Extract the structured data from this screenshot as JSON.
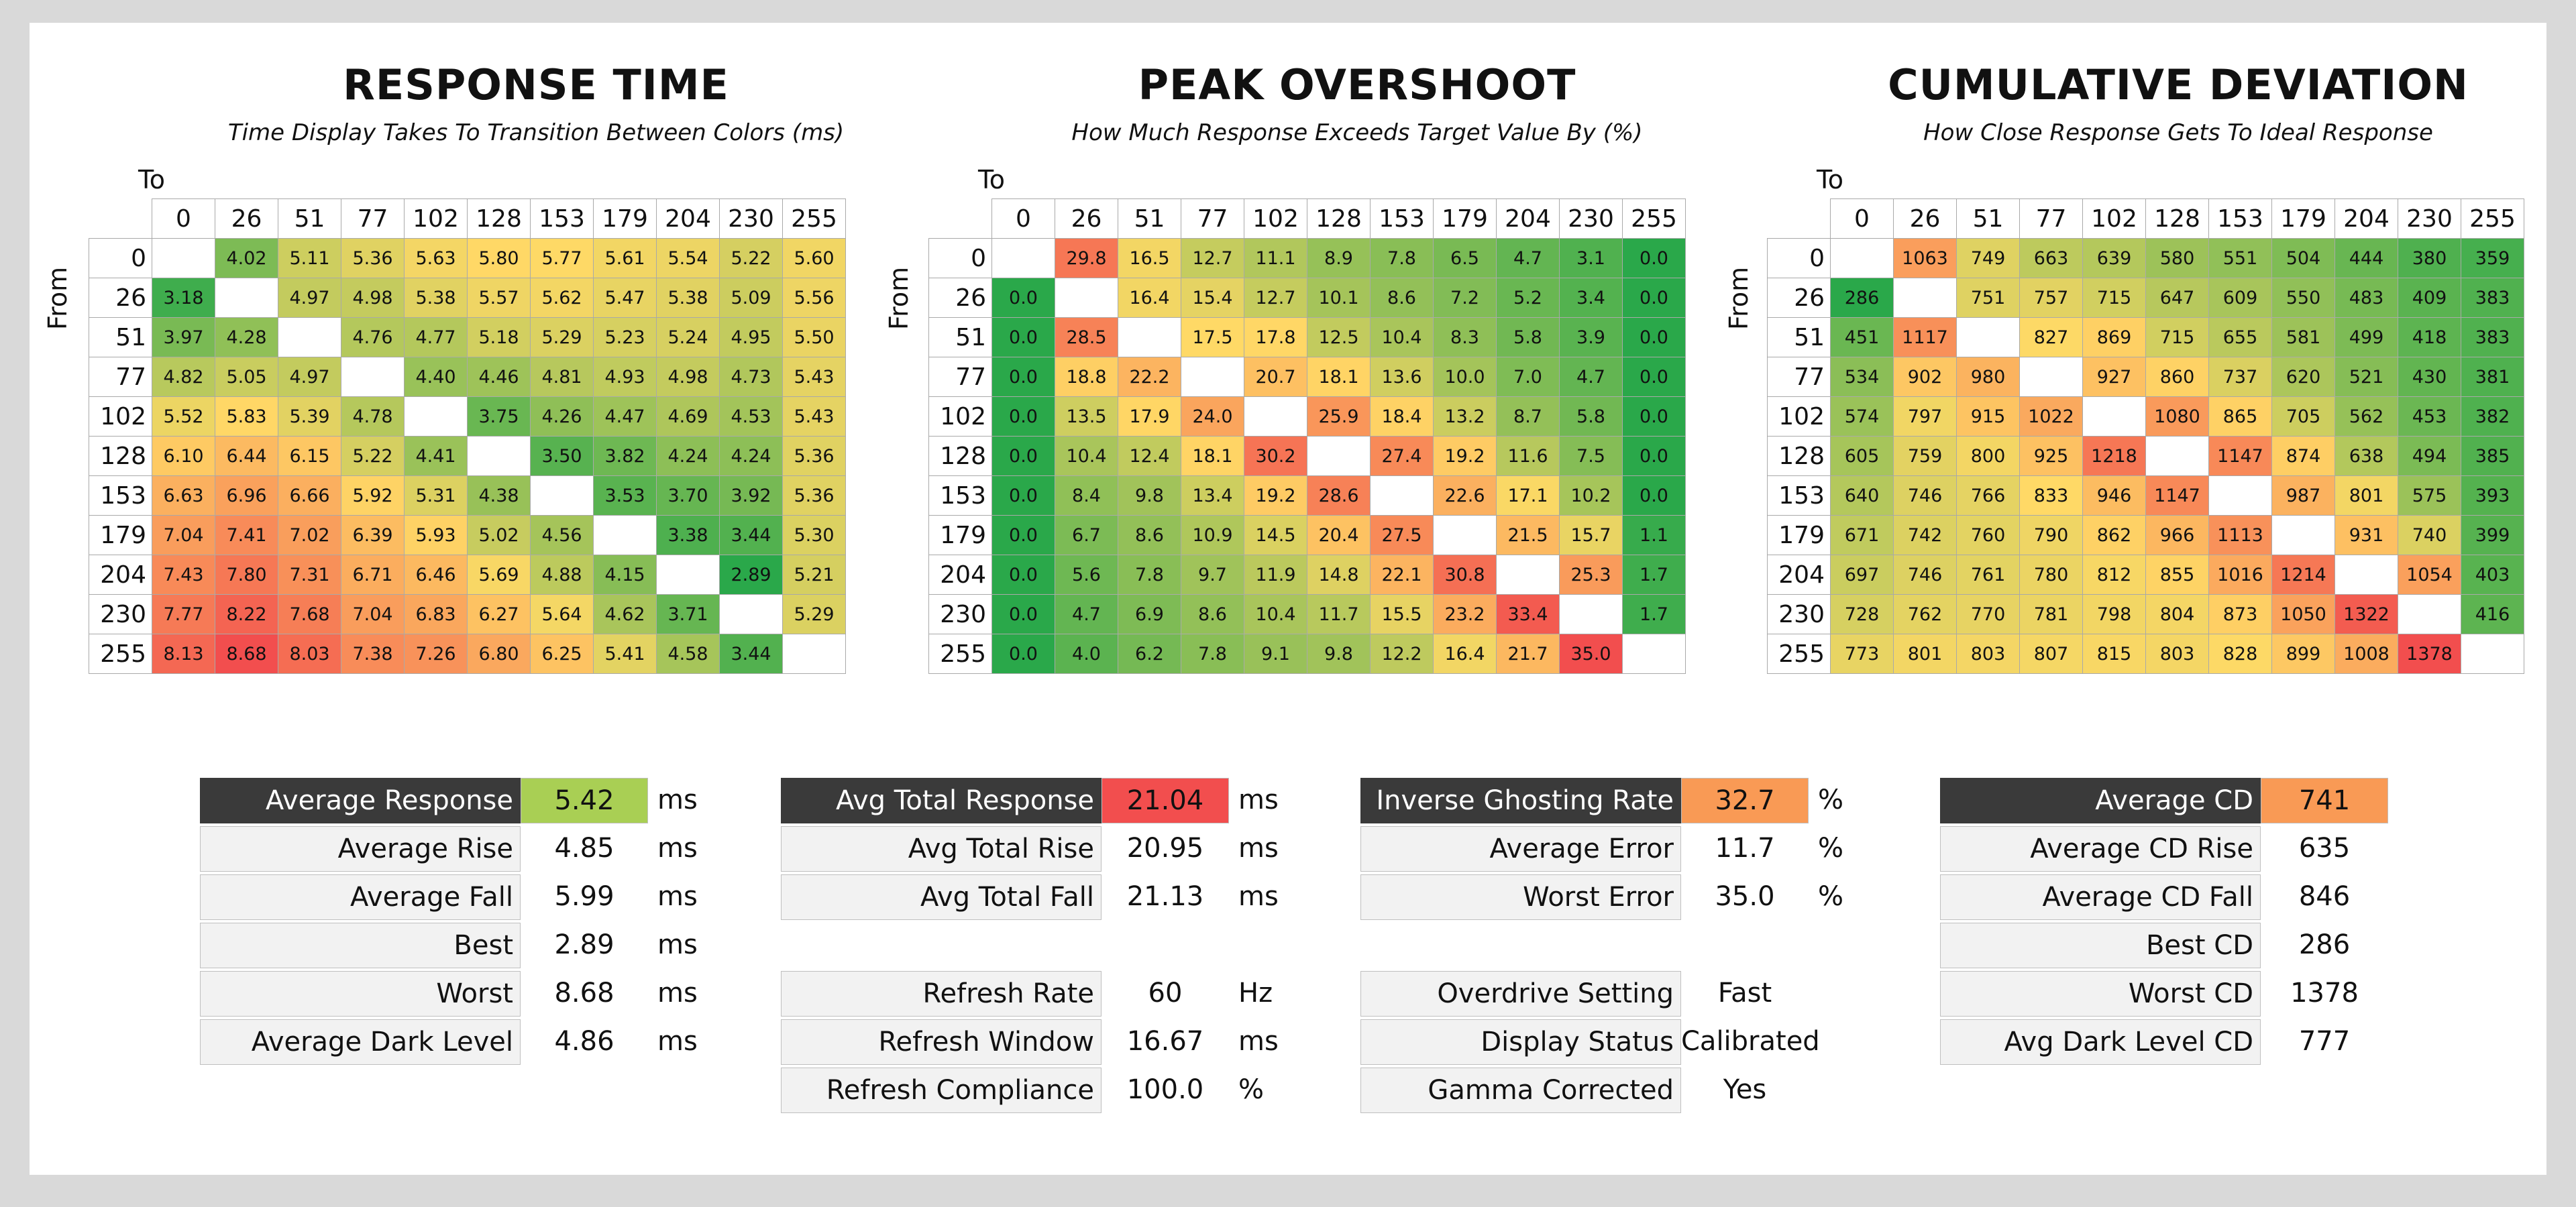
{
  "colors": {
    "good": "#2aa84a",
    "mid": "#ffd966",
    "bad": "#f24e4e",
    "dark_label": "#3a3a3a"
  },
  "levels": [
    "0",
    "26",
    "51",
    "77",
    "102",
    "128",
    "153",
    "179",
    "204",
    "230",
    "255"
  ],
  "axis": {
    "to": "To",
    "from": "From"
  },
  "chart_data": [
    {
      "type": "heatmap",
      "title": "RESPONSE TIME",
      "subtitle": "Time Display Takes To Transition Between Colors (ms)",
      "x_label": "To",
      "y_label": "From",
      "categories": [
        "0",
        "26",
        "51",
        "77",
        "102",
        "128",
        "153",
        "179",
        "204",
        "230",
        "255"
      ],
      "color_range": [
        2.89,
        8.68
      ],
      "decimals": 2,
      "values": [
        [
          null,
          4.02,
          5.11,
          5.36,
          5.63,
          5.8,
          5.77,
          5.61,
          5.54,
          5.22,
          5.6
        ],
        [
          3.18,
          null,
          4.97,
          4.98,
          5.38,
          5.57,
          5.62,
          5.47,
          5.38,
          5.09,
          5.56
        ],
        [
          3.97,
          4.28,
          null,
          4.76,
          4.77,
          5.18,
          5.29,
          5.23,
          5.24,
          4.95,
          5.5
        ],
        [
          4.82,
          5.05,
          4.97,
          null,
          4.4,
          4.46,
          4.81,
          4.93,
          4.98,
          4.73,
          5.43
        ],
        [
          5.52,
          5.83,
          5.39,
          4.78,
          null,
          3.75,
          4.26,
          4.47,
          4.69,
          4.53,
          5.43
        ],
        [
          6.1,
          6.44,
          6.15,
          5.22,
          4.41,
          null,
          3.5,
          3.82,
          4.24,
          4.24,
          5.36
        ],
        [
          6.63,
          6.96,
          6.66,
          5.92,
          5.31,
          4.38,
          null,
          3.53,
          3.7,
          3.92,
          5.36
        ],
        [
          7.04,
          7.41,
          7.02,
          6.39,
          5.93,
          5.02,
          4.56,
          null,
          3.38,
          3.44,
          5.3
        ],
        [
          7.43,
          7.8,
          7.31,
          6.71,
          6.46,
          5.69,
          4.88,
          4.15,
          null,
          2.89,
          5.21
        ],
        [
          7.77,
          8.22,
          7.68,
          7.04,
          6.83,
          6.27,
          5.64,
          4.62,
          3.71,
          null,
          5.29
        ],
        [
          8.13,
          8.68,
          8.03,
          7.38,
          7.26,
          6.8,
          6.25,
          5.41,
          4.58,
          3.44,
          null
        ]
      ]
    },
    {
      "type": "heatmap",
      "title": "PEAK OVERSHOOT",
      "subtitle": "How Much Response Exceeds Target Value By (%)",
      "x_label": "To",
      "y_label": "From",
      "categories": [
        "0",
        "26",
        "51",
        "77",
        "102",
        "128",
        "153",
        "179",
        "204",
        "230",
        "255"
      ],
      "color_range": [
        0.0,
        35.0
      ],
      "decimals": 1,
      "values": [
        [
          null,
          29.8,
          16.5,
          12.7,
          11.1,
          8.9,
          7.8,
          6.5,
          4.7,
          3.1,
          0.0
        ],
        [
          0.0,
          null,
          16.4,
          15.4,
          12.7,
          10.1,
          8.6,
          7.2,
          5.2,
          3.4,
          0.0
        ],
        [
          0.0,
          28.5,
          null,
          17.5,
          17.8,
          12.5,
          10.4,
          8.3,
          5.8,
          3.9,
          0.0
        ],
        [
          0.0,
          18.8,
          22.2,
          null,
          20.7,
          18.1,
          13.6,
          10.0,
          7.0,
          4.7,
          0.0
        ],
        [
          0.0,
          13.5,
          17.9,
          24.0,
          null,
          25.9,
          18.4,
          13.2,
          8.7,
          5.8,
          0.0
        ],
        [
          0.0,
          10.4,
          12.4,
          18.1,
          30.2,
          null,
          27.4,
          19.2,
          11.6,
          7.5,
          0.0
        ],
        [
          0.0,
          8.4,
          9.8,
          13.4,
          19.2,
          28.6,
          null,
          22.6,
          17.1,
          10.2,
          0.0
        ],
        [
          0.0,
          6.7,
          8.6,
          10.9,
          14.5,
          20.4,
          27.5,
          null,
          21.5,
          15.7,
          1.1
        ],
        [
          0.0,
          5.6,
          7.8,
          9.7,
          11.9,
          14.8,
          22.1,
          30.8,
          null,
          25.3,
          1.7
        ],
        [
          0.0,
          4.7,
          6.9,
          8.6,
          10.4,
          11.7,
          15.5,
          23.2,
          33.4,
          null,
          1.7
        ],
        [
          0.0,
          4.0,
          6.2,
          7.8,
          9.1,
          9.8,
          12.2,
          16.4,
          21.7,
          35.0,
          null
        ]
      ]
    },
    {
      "type": "heatmap",
      "title": "CUMULATIVE DEVIATION",
      "subtitle": "How Close Response Gets To Ideal Response",
      "x_label": "To",
      "y_label": "From",
      "categories": [
        "0",
        "26",
        "51",
        "77",
        "102",
        "128",
        "153",
        "179",
        "204",
        "230",
        "255"
      ],
      "color_range": [
        286,
        1378
      ],
      "decimals": 0,
      "values": [
        [
          null,
          1063,
          749,
          663,
          639,
          580,
          551,
          504,
          444,
          380,
          359
        ],
        [
          286,
          null,
          751,
          757,
          715,
          647,
          609,
          550,
          483,
          409,
          383
        ],
        [
          451,
          1117,
          null,
          827,
          869,
          715,
          655,
          581,
          499,
          418,
          383
        ],
        [
          534,
          902,
          980,
          null,
          927,
          860,
          737,
          620,
          521,
          430,
          381
        ],
        [
          574,
          797,
          915,
          1022,
          null,
          1080,
          865,
          705,
          562,
          453,
          382
        ],
        [
          605,
          759,
          800,
          925,
          1218,
          null,
          1147,
          874,
          638,
          494,
          385
        ],
        [
          640,
          746,
          766,
          833,
          946,
          1147,
          null,
          987,
          801,
          575,
          393
        ],
        [
          671,
          742,
          760,
          790,
          862,
          966,
          1113,
          null,
          931,
          740,
          399
        ],
        [
          697,
          746,
          761,
          780,
          812,
          855,
          1016,
          1214,
          null,
          1054,
          403
        ],
        [
          728,
          762,
          770,
          781,
          798,
          804,
          873,
          1050,
          1322,
          null,
          416
        ],
        [
          773,
          801,
          803,
          807,
          815,
          803,
          828,
          899,
          1008,
          1378,
          null
        ]
      ]
    }
  ],
  "stats": [
    {
      "rows": [
        {
          "label": "Average Response",
          "value": "5.42",
          "unit": "ms",
          "header": true,
          "color": "#a9cf54"
        },
        {
          "label": "Average Rise",
          "value": "4.85",
          "unit": "ms"
        },
        {
          "label": "Average Fall",
          "value": "5.99",
          "unit": "ms"
        },
        {
          "label": "Best",
          "value": "2.89",
          "unit": "ms"
        },
        {
          "label": "Worst",
          "value": "8.68",
          "unit": "ms"
        },
        {
          "label": "Average Dark Level",
          "value": "4.86",
          "unit": "ms"
        }
      ]
    },
    {
      "rows": [
        {
          "label": "Avg Total Response",
          "value": "21.04",
          "unit": "ms",
          "header": true,
          "color": "#f24e4e"
        },
        {
          "label": "Avg Total Rise",
          "value": "20.95",
          "unit": "ms"
        },
        {
          "label": "Avg Total Fall",
          "value": "21.13",
          "unit": "ms"
        },
        {
          "spacer": true
        },
        {
          "label": "Refresh Rate",
          "value": "60",
          "unit": "Hz"
        },
        {
          "label": "Refresh Window",
          "value": "16.67",
          "unit": "ms"
        },
        {
          "label": "Refresh Compliance",
          "value": "100.0",
          "unit": "%"
        }
      ]
    },
    {
      "rows": [
        {
          "label": "Inverse Ghosting Rate",
          "value": "32.7",
          "unit": "%",
          "header": true,
          "color": "#f99a55"
        },
        {
          "label": "Average Error",
          "value": "11.7",
          "unit": "%"
        },
        {
          "label": "Worst Error",
          "value": "35.0",
          "unit": "%"
        },
        {
          "spacer": true
        },
        {
          "label": "Overdrive Setting",
          "value": "Fast",
          "unit": ""
        },
        {
          "label": "Display Status",
          "value": "Calibrated",
          "unit": ""
        },
        {
          "label": "Gamma Corrected",
          "value": "Yes",
          "unit": ""
        }
      ]
    },
    {
      "rows": [
        {
          "label": "Average CD",
          "value": "741",
          "unit": "",
          "header": true,
          "color": "#f99a55"
        },
        {
          "label": "Average CD Rise",
          "value": "635",
          "unit": ""
        },
        {
          "label": "Average CD Fall",
          "value": "846",
          "unit": ""
        },
        {
          "label": "Best CD",
          "value": "286",
          "unit": ""
        },
        {
          "label": "Worst CD",
          "value": "1378",
          "unit": ""
        },
        {
          "label": "Avg Dark Level CD",
          "value": "777",
          "unit": ""
        }
      ]
    }
  ]
}
